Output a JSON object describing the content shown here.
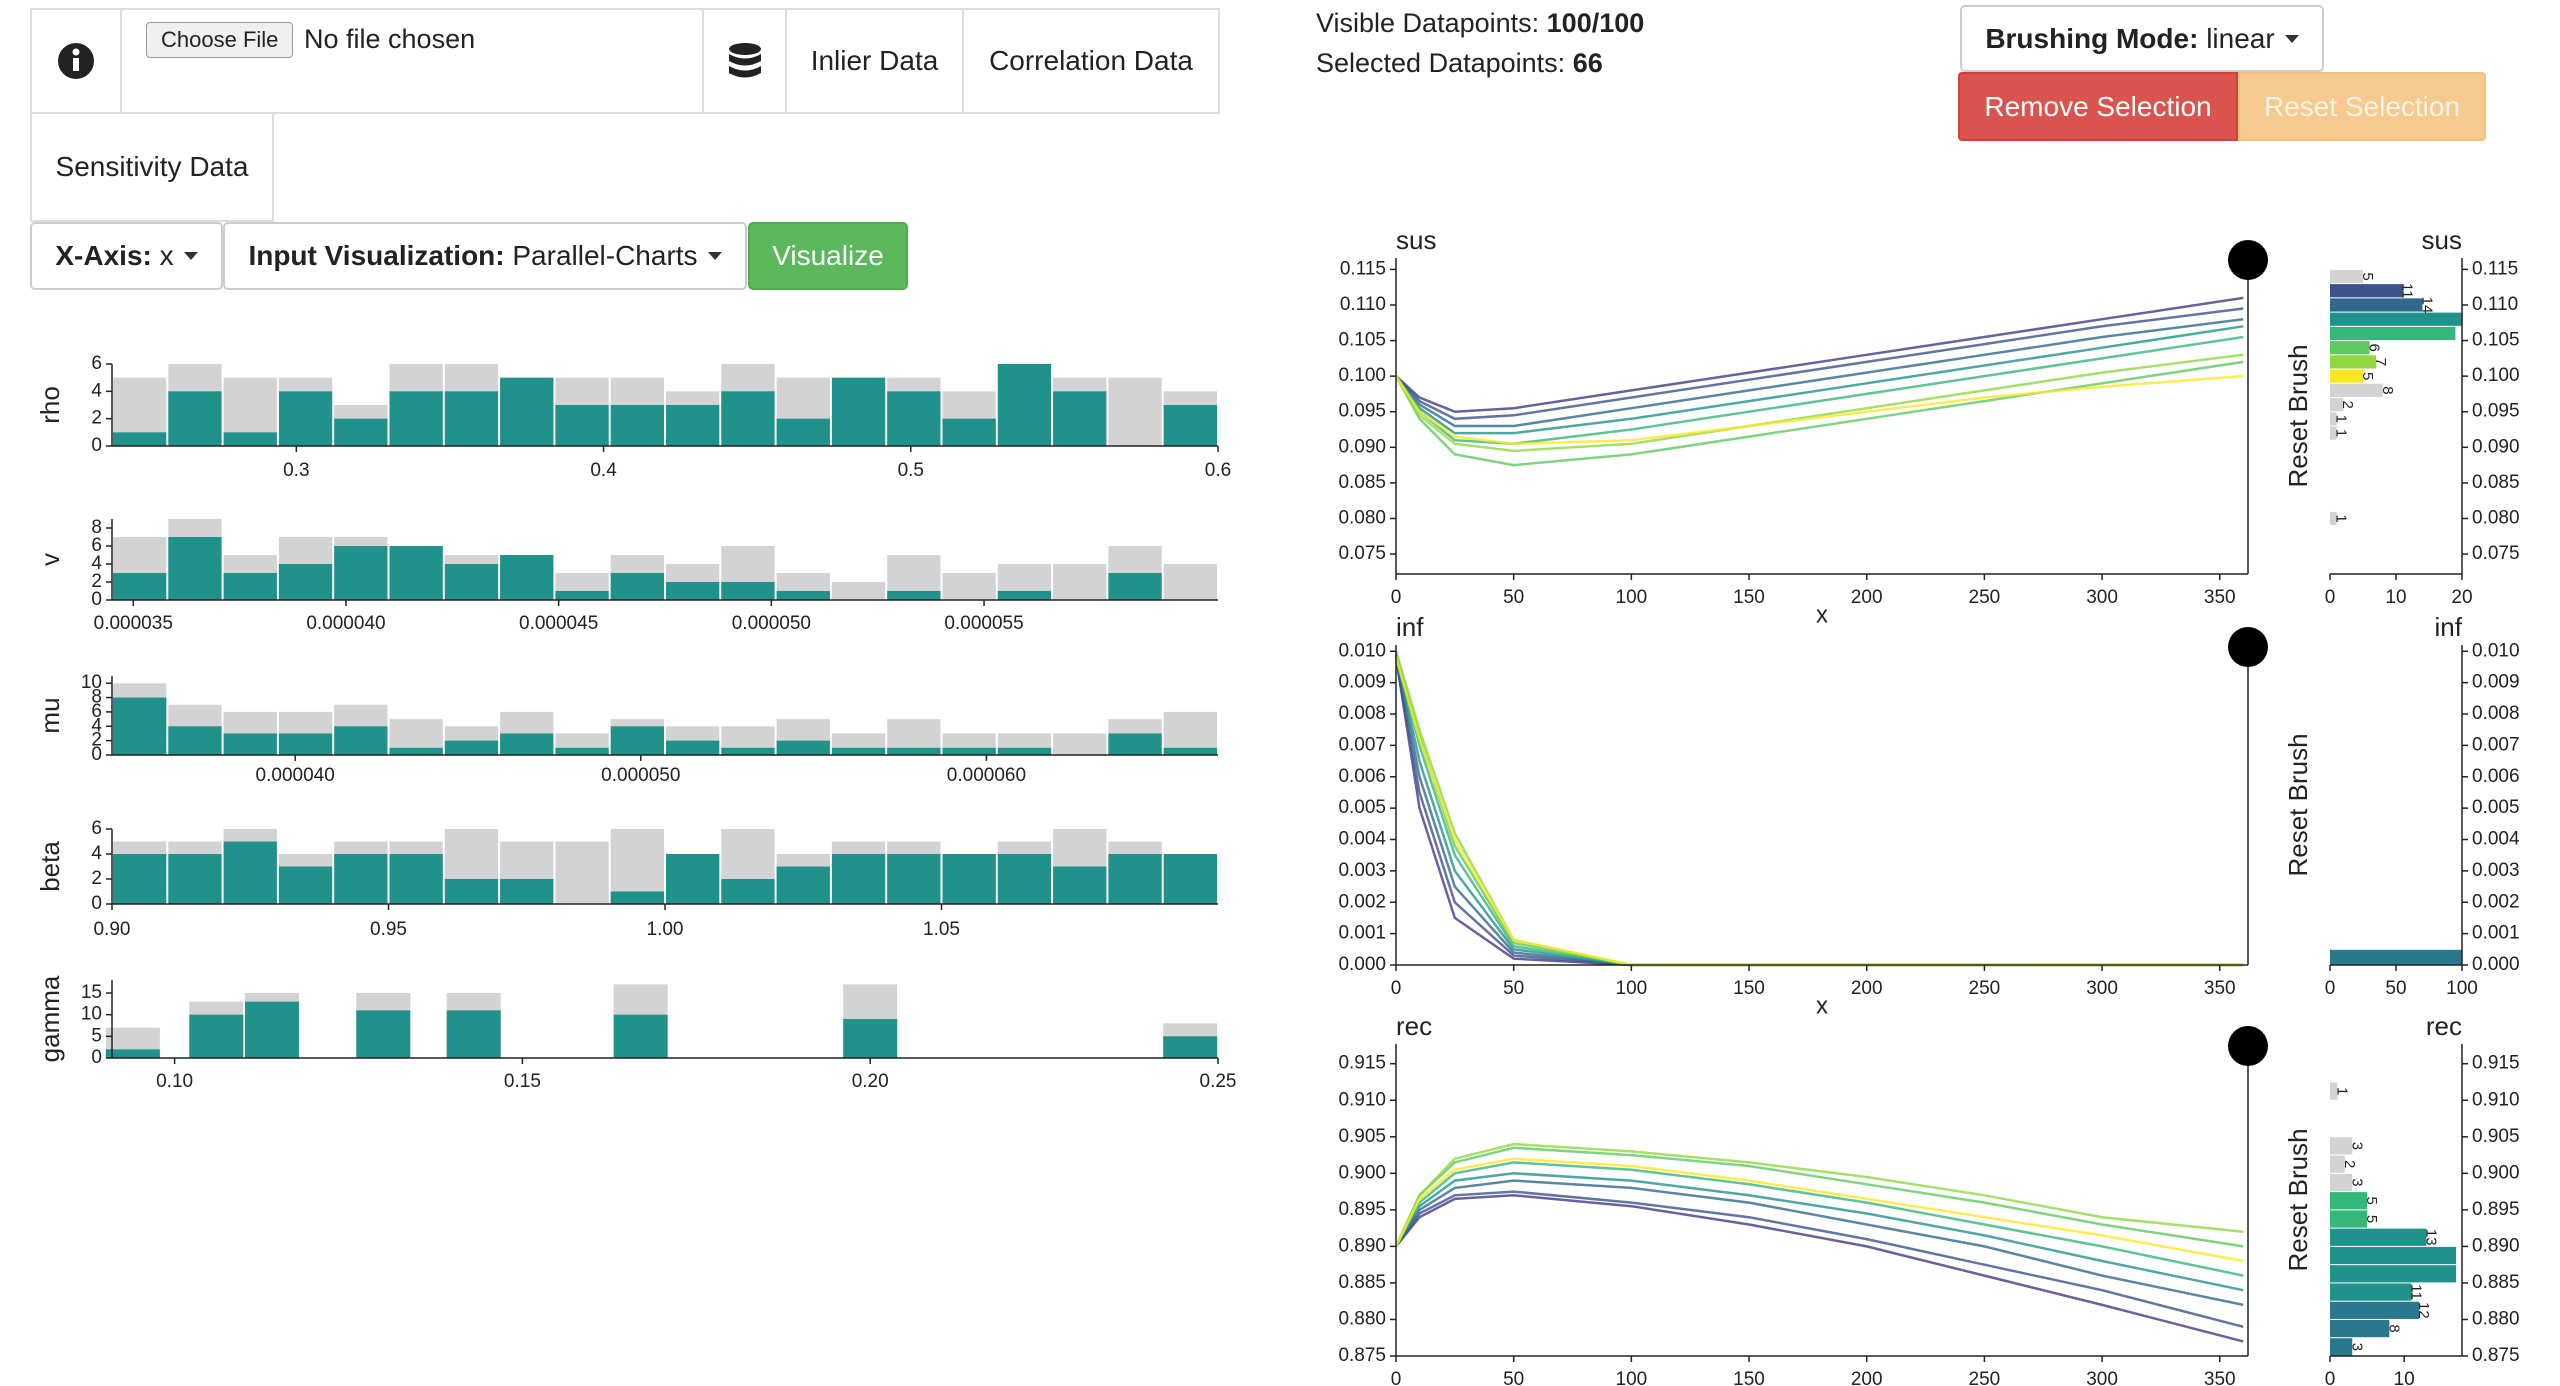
{
  "toolbar": {
    "choose_file": "Choose File",
    "file_status": "No file chosen",
    "inlier_data": "Inlier Data",
    "correlation_data": "Correlation Data",
    "sensitivity_data": "Sensitivity Data",
    "x_axis": {
      "label": "X-Axis:",
      "value": "x"
    },
    "input_visualization": {
      "label": "Input Visualization:",
      "value": "Parallel-Charts"
    },
    "visualize": "Visualize"
  },
  "status": {
    "visible_label": "Visible Datapoints:",
    "visible_value": "100/100",
    "selected_label": "Selected Datapoints:",
    "selected_value": 66
  },
  "brushing": {
    "label": "Brushing Mode:",
    "value": "linear",
    "remove": "Remove Selection",
    "reset": "Reset Selection"
  },
  "parameters": [
    {
      "name": "rho",
      "type": "histogram",
      "color": "#d3d3d3",
      "selected_color": "#21918c",
      "bins": [
        0.24,
        0.258,
        0.276,
        0.294,
        0.312,
        0.33,
        0.348,
        0.366,
        0.384,
        0.402,
        0.42,
        0.438,
        0.456,
        0.474,
        0.492,
        0.51,
        0.528,
        0.546,
        0.564,
        0.582,
        0.6
      ],
      "counts": [
        5,
        6,
        5,
        5,
        3,
        6,
        6,
        5,
        5,
        5,
        4,
        6,
        5,
        5,
        5,
        4,
        6,
        5,
        5,
        4
      ],
      "selected": [
        1,
        4,
        1,
        4,
        2,
        4,
        4,
        5,
        3,
        3,
        3,
        4,
        2,
        5,
        4,
        2,
        6,
        4,
        0,
        3
      ],
      "xlim": [
        0.24,
        0.6
      ],
      "xticks": [
        0.3,
        0.4,
        0.5,
        0.6
      ],
      "ylim": [
        0,
        6
      ],
      "yticks": [
        0,
        2,
        4,
        6
      ]
    },
    {
      "name": "v",
      "type": "histogram",
      "color": "#d3d3d3",
      "selected_color": "#21918c",
      "bins": [
        3.45e-05,
        3.58e-05,
        3.71e-05,
        3.84e-05,
        3.97e-05,
        4.1e-05,
        4.23e-05,
        4.36e-05,
        4.49e-05,
        4.62e-05,
        4.75e-05,
        4.88e-05,
        5.01e-05,
        5.14e-05,
        5.27e-05,
        5.4e-05,
        5.53e-05,
        5.66e-05,
        5.79e-05,
        5.92e-05,
        6.05e-05
      ],
      "counts": [
        7,
        9,
        5,
        7,
        7,
        6,
        5,
        5,
        3,
        5,
        4,
        6,
        3,
        2,
        5,
        3,
        4,
        4,
        6,
        4
      ],
      "selected": [
        3,
        7,
        3,
        4,
        6,
        6,
        4,
        5,
        1,
        3,
        2,
        2,
        1,
        0,
        1,
        0,
        1,
        0,
        3,
        0
      ],
      "xlim": [
        3.45e-05,
        6.05e-05
      ],
      "xticks": [
        3.5e-05,
        {
          "value": 4e-05,
          "label": "0.000040"
        },
        4.5e-05,
        {
          "value": 5e-05,
          "label": "0.000050"
        },
        5.5e-05
      ],
      "ylim": [
        0,
        9
      ],
      "yticks": [
        0,
        2,
        4,
        6,
        8
      ]
    },
    {
      "name": "mu",
      "type": "histogram",
      "color": "#d3d3d3",
      "selected_color": "#21918c",
      "bins": [
        3.47e-05,
        3.63e-05,
        3.79e-05,
        3.95e-05,
        4.11e-05,
        4.27e-05,
        4.43e-05,
        4.59e-05,
        4.75e-05,
        4.91e-05,
        5.07e-05,
        5.23e-05,
        5.39e-05,
        5.55e-05,
        5.71e-05,
        5.87e-05,
        6.03e-05,
        6.19e-05,
        6.35e-05,
        6.51e-05,
        6.67e-05
      ],
      "counts": [
        10,
        7,
        6,
        6,
        7,
        5,
        4,
        6,
        3,
        5,
        4,
        4,
        5,
        3,
        5,
        3,
        3,
        3,
        5,
        6
      ],
      "selected": [
        8,
        4,
        3,
        3,
        4,
        1,
        2,
        3,
        1,
        4,
        2,
        1,
        2,
        1,
        1,
        1,
        1,
        0,
        3,
        1
      ],
      "xlim": [
        3.47e-05,
        6.67e-05
      ],
      "xticks": [
        {
          "value": 4e-05,
          "label": "0.000040"
        },
        {
          "value": 5e-05,
          "label": "0.000050"
        },
        {
          "value": 6e-05,
          "label": "0.000060"
        }
      ],
      "ylim": [
        0,
        11
      ],
      "yticks": [
        0,
        2,
        4,
        6,
        8,
        10
      ]
    },
    {
      "name": "beta",
      "type": "histogram",
      "color": "#d3d3d3",
      "selected_color": "#21918c",
      "bins": [
        0.9,
        0.91,
        0.92,
        0.93,
        0.94,
        0.95,
        0.96,
        0.97,
        0.98,
        0.99,
        1,
        1.01,
        1.02,
        1.03,
        1.04,
        1.05,
        1.06,
        1.07,
        1.08,
        1.09,
        1.1
      ],
      "counts": [
        5,
        5,
        6,
        4,
        5,
        5,
        6,
        5,
        5,
        6,
        4,
        6,
        4,
        5,
        5,
        4,
        5,
        6,
        5,
        4
      ],
      "selected": [
        4,
        4,
        5,
        3,
        4,
        4,
        2,
        2,
        0,
        1,
        4,
        2,
        3,
        4,
        4,
        4,
        4,
        3,
        4,
        4
      ],
      "xlim": [
        0.9,
        1.1
      ],
      "xticks": [
        {
          "value": 0.9,
          "label": "0.90"
        },
        0.95,
        {
          "value": 1,
          "label": "1.00"
        },
        1.05
      ],
      "ylim": [
        0,
        6
      ],
      "yticks": [
        0,
        2,
        4,
        6
      ]
    },
    {
      "name": "gamma",
      "type": "bar",
      "color": "#d3d3d3",
      "selected_color": "#21918c",
      "x": [
        0.094,
        0.106,
        0.114,
        0.13,
        0.143,
        0.167,
        0.2,
        0.246
      ],
      "counts": [
        7,
        13,
        15,
        15,
        15,
        17,
        17,
        8
      ],
      "selected": [
        2,
        10,
        13,
        11,
        11,
        10,
        9,
        5
      ],
      "xlim": [
        0.091,
        0.25
      ],
      "xticks": [
        {
          "value": 0.1,
          "label": "0.10"
        },
        0.15,
        {
          "value": 0.2,
          "label": "0.20"
        },
        0.25
      ],
      "ylim": [
        0,
        18
      ],
      "yticks": [
        0,
        5,
        10,
        15
      ]
    }
  ],
  "outputs": [
    {
      "title": "sus",
      "type": "line",
      "x_label": "x",
      "x": [
        0,
        10,
        25,
        50,
        100,
        150,
        200,
        250,
        300,
        360
      ],
      "xlim": [
        0,
        362
      ],
      "xticks": [
        0,
        50,
        100,
        150,
        200,
        250,
        300,
        350
      ],
      "ylim": [
        0.0722,
        0.1166
      ],
      "yticks": [
        0.075,
        {
          "value": 0.08,
          "label": "0.080"
        },
        0.085,
        {
          "value": 0.09,
          "label": "0.090"
        },
        0.095,
        {
          "value": 0.1,
          "label": "0.100"
        },
        0.105,
        {
          "value": 0.11,
          "label": "0.110"
        },
        0.115
      ],
      "series": [
        {
          "color": "#443983",
          "values": [
            0.1,
            0.097,
            0.095,
            0.0955,
            0.098,
            0.1005,
            0.103,
            0.1055,
            0.108,
            0.111
          ]
        },
        {
          "color": "#3b528b",
          "values": [
            0.1,
            0.0965,
            0.094,
            0.0945,
            0.097,
            0.0995,
            0.102,
            0.1045,
            0.107,
            0.1095
          ]
        },
        {
          "color": "#31688e",
          "values": [
            0.1,
            0.096,
            0.093,
            0.093,
            0.0955,
            0.098,
            0.1005,
            0.103,
            0.1055,
            0.108
          ]
        },
        {
          "color": "#21918c",
          "values": [
            0.1,
            0.0955,
            0.092,
            0.092,
            0.094,
            0.0965,
            0.099,
            0.1015,
            0.104,
            0.107
          ]
        },
        {
          "color": "#35b779",
          "values": [
            0.1,
            0.095,
            0.091,
            0.0905,
            0.0925,
            0.095,
            0.0975,
            0.1,
            0.1025,
            0.1055
          ]
        },
        {
          "color": "#5ec962",
          "values": [
            0.1,
            0.094,
            0.089,
            0.0875,
            0.089,
            0.0915,
            0.094,
            0.0965,
            0.099,
            0.102
          ]
        },
        {
          "color": "#90d743",
          "values": [
            0.1,
            0.0945,
            0.0905,
            0.0895,
            0.0905,
            0.093,
            0.0955,
            0.098,
            0.1005,
            0.103
          ]
        },
        {
          "color": "#fde725",
          "values": [
            0.1,
            0.095,
            0.0915,
            0.0905,
            0.091,
            0.093,
            0.095,
            0.097,
            0.0985,
            0.1
          ]
        }
      ],
      "histogram": {
        "brush_label": "Reset Brush",
        "bins": [
          0.079,
          0.081,
          0.083,
          0.085,
          0.087,
          0.089,
          0.091,
          0.093,
          0.095,
          0.097,
          0.099,
          0.101,
          0.103,
          0.105,
          0.107,
          0.109,
          0.111,
          0.113,
          0.115
        ],
        "counts": [
          1,
          0,
          0,
          0,
          0,
          0,
          1,
          1,
          2,
          8,
          5,
          7,
          6,
          19,
          20,
          14,
          11,
          5
        ],
        "colors": [
          "#d3d3d3",
          "#d3d3d3",
          "#d3d3d3",
          "#d3d3d3",
          "#d3d3d3",
          "#d3d3d3",
          "#d3d3d3",
          "#d3d3d3",
          "#d3d3d3",
          "#d3d3d3",
          "#fde725",
          "#90d743",
          "#5ec962",
          "#35b779",
          "#21918c",
          "#31688e",
          "#3b528b",
          "#d3d3d3"
        ],
        "xlim": [
          0,
          20
        ],
        "xticks": [
          0,
          10,
          20
        ]
      }
    },
    {
      "title": "inf",
      "type": "line",
      "x_label": "x",
      "x": [
        0,
        10,
        25,
        50,
        100,
        150,
        200,
        250,
        300,
        360
      ],
      "xlim": [
        0,
        362
      ],
      "xticks": [
        0,
        50,
        100,
        150,
        200,
        250,
        300,
        350
      ],
      "ylim": [
        0,
        0.0102
      ],
      "yticks": [
        {
          "value": 0,
          "label": "0.000"
        },
        0.001,
        0.002,
        0.003,
        0.004,
        0.005,
        0.006,
        0.007,
        0.008,
        0.009,
        {
          "value": 0.01,
          "label": "0.010"
        }
      ],
      "series": [
        {
          "color": "#443983",
          "values": [
            0.0098,
            0.005,
            0.0015,
            0.0002,
            0,
            0,
            0,
            0,
            0,
            0
          ]
        },
        {
          "color": "#3b528b",
          "values": [
            0.0098,
            0.0055,
            0.002,
            0.0003,
            0,
            0,
            0,
            0,
            0,
            0
          ]
        },
        {
          "color": "#31688e",
          "values": [
            0.0099,
            0.006,
            0.0025,
            0.0004,
            0,
            0,
            0,
            0,
            0,
            0
          ]
        },
        {
          "color": "#21918c",
          "values": [
            0.0099,
            0.0065,
            0.003,
            0.0005,
            0,
            0,
            0,
            0,
            0,
            0
          ]
        },
        {
          "color": "#35b779",
          "values": [
            0.0099,
            0.007,
            0.0035,
            0.0006,
            0,
            0,
            0,
            0,
            0,
            0
          ]
        },
        {
          "color": "#5ec962",
          "values": [
            0.01,
            0.0073,
            0.0038,
            0.0007,
            0,
            0,
            0,
            0,
            0,
            0
          ]
        },
        {
          "color": "#90d743",
          "values": [
            0.01,
            0.0075,
            0.0042,
            0.0008,
            0,
            0,
            0,
            0,
            0,
            0
          ]
        },
        {
          "color": "#fde725",
          "values": [
            0.0098,
            0.0072,
            0.004,
            0.0008,
            0,
            0,
            0,
            0,
            0,
            0
          ]
        }
      ],
      "histogram": {
        "brush_label": "Reset Brush",
        "bins": [
          0,
          0.0005
        ],
        "counts": [
          100
        ],
        "colors": [
          "#2a788e"
        ],
        "xlim": [
          0,
          100
        ],
        "xticks": [
          0,
          50,
          100
        ]
      }
    },
    {
      "title": "rec",
      "type": "line",
      "x": [
        0,
        10,
        25,
        50,
        100,
        150,
        200,
        250,
        300,
        360
      ],
      "xlim": [
        0,
        362
      ],
      "xticks": [
        0,
        50,
        100,
        150,
        200,
        250,
        300,
        350
      ],
      "ylim": [
        0.875,
        0.9177
      ],
      "yticks": [
        0.875,
        {
          "value": 0.88,
          "label": "0.880"
        },
        0.885,
        {
          "value": 0.89,
          "label": "0.890"
        },
        0.895,
        {
          "value": 0.9,
          "label": "0.900"
        },
        0.905,
        {
          "value": 0.91,
          "label": "0.910"
        },
        0.915
      ],
      "series": [
        {
          "color": "#443983",
          "values": [
            0.89,
            0.894,
            0.8965,
            0.897,
            0.8955,
            0.893,
            0.89,
            0.886,
            0.882,
            0.877
          ]
        },
        {
          "color": "#3b528b",
          "values": [
            0.89,
            0.8945,
            0.897,
            0.8975,
            0.896,
            0.894,
            0.891,
            0.8875,
            0.884,
            0.879
          ]
        },
        {
          "color": "#31688e",
          "values": [
            0.89,
            0.895,
            0.898,
            0.899,
            0.898,
            0.896,
            0.893,
            0.89,
            0.886,
            0.882
          ]
        },
        {
          "color": "#21918c",
          "values": [
            0.89,
            0.8955,
            0.899,
            0.9,
            0.899,
            0.897,
            0.8945,
            0.8915,
            0.888,
            0.884
          ]
        },
        {
          "color": "#35b779",
          "values": [
            0.89,
            0.896,
            0.9,
            0.9015,
            0.9005,
            0.8985,
            0.896,
            0.893,
            0.89,
            0.886
          ]
        },
        {
          "color": "#5ec962",
          "values": [
            0.89,
            0.897,
            0.9015,
            0.9035,
            0.9025,
            0.901,
            0.8985,
            0.896,
            0.893,
            0.89
          ]
        },
        {
          "color": "#90d743",
          "values": [
            0.89,
            0.897,
            0.902,
            0.904,
            0.903,
            0.9015,
            0.8995,
            0.897,
            0.894,
            0.892
          ]
        },
        {
          "color": "#fde725",
          "values": [
            0.89,
            0.8965,
            0.9005,
            0.902,
            0.901,
            0.899,
            0.8965,
            0.894,
            0.8915,
            0.888
          ]
        }
      ],
      "histogram": {
        "brush_label": "Reset Brush",
        "bins": [
          0.875,
          0.8775,
          0.88,
          0.8825,
          0.885,
          0.8875,
          0.89,
          0.8925,
          0.895,
          0.8975,
          0.9,
          0.9025,
          0.905,
          0.9075,
          0.91,
          0.9125
        ],
        "counts": [
          3,
          8,
          12,
          11,
          17,
          17,
          13,
          5,
          5,
          3,
          2,
          3,
          0,
          0,
          1
        ],
        "colors": [
          "#2a788e",
          "#2a788e",
          "#2a788e",
          "#21918c",
          "#21918c",
          "#21918c",
          "#21918c",
          "#35b779",
          "#35b779",
          "#d3d3d3",
          "#d3d3d3",
          "#d3d3d3",
          "#d3d3d3",
          "#d3d3d3",
          "#d3d3d3"
        ],
        "xlim": [
          0,
          17.8
        ],
        "xticks": [
          0,
          10
        ]
      }
    }
  ]
}
